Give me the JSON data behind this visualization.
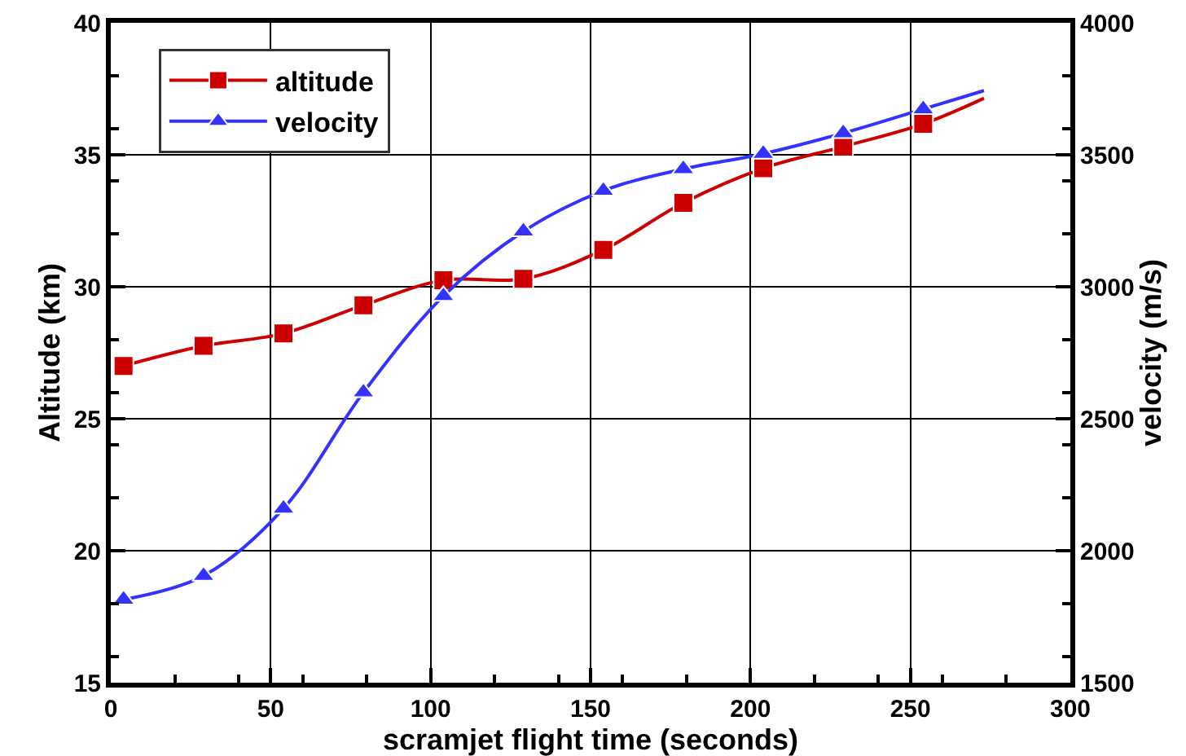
{
  "chart_data": {
    "type": "line",
    "xlabel": "scramjet flight time (seconds)",
    "ylabel": "Altitude (km)",
    "y2label": "velocity (m/s)",
    "x": [
      4,
      29,
      54,
      79,
      104,
      129,
      154,
      179,
      204,
      229,
      254,
      273
    ],
    "series": [
      {
        "name": "altitude",
        "color": "#cc0000",
        "marker": "square",
        "values": [
          27.0,
          27.76,
          28.23,
          29.3,
          30.25,
          30.3,
          31.4,
          33.18,
          34.49,
          35.31,
          36.17,
          37.14
        ]
      },
      {
        "name": "velocity",
        "color": "#3333ff",
        "marker": "triangle",
        "axis": "y2",
        "values": [
          1815,
          1905,
          2160,
          2600,
          2965,
          3210,
          3364,
          3446,
          3504,
          3582,
          3673,
          3743
        ]
      }
    ],
    "xlim": [
      0,
      300
    ],
    "xticks": [
      0,
      50,
      100,
      150,
      200,
      250,
      300
    ],
    "ylim": [
      15,
      40
    ],
    "yticks": [
      15,
      20,
      25,
      30,
      35,
      40
    ],
    "y2lim": [
      1500,
      4000
    ],
    "y2ticks": [
      1500,
      2000,
      2500,
      3000,
      3500,
      4000
    ],
    "grid": true,
    "legend": "top left",
    "line_style": "solid"
  }
}
